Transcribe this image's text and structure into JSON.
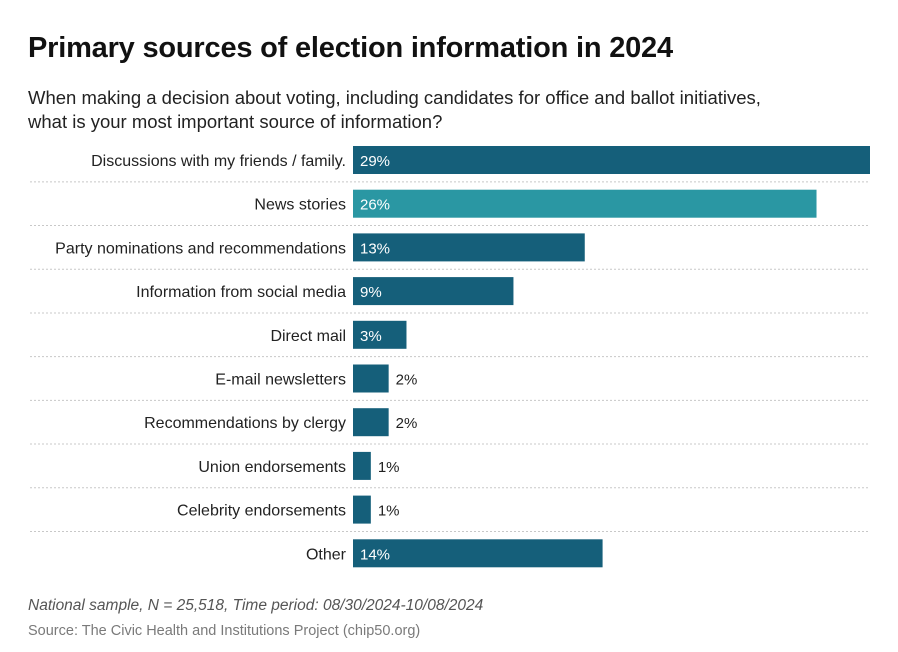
{
  "header": {
    "title": "Primary sources of election information in 2024",
    "subtitle_line1": "When making a decision about voting, including candidates for office and ballot initiatives,",
    "subtitle_line2": "what is your most important source of information?"
  },
  "footer": {
    "note": "National sample, N = 25,518, Time period: 08/30/2024-10/08/2024",
    "source": "Source: The Civic Health and Institutions Project (chip50.org)"
  },
  "chart_data": {
    "type": "bar",
    "orientation": "horizontal",
    "title": "Primary sources of election information in 2024",
    "categories": [
      "Discussions with my friends / family.",
      "News stories",
      "Party nominations and recommendations",
      "Information from social media",
      "Direct mail",
      "E-mail newsletters",
      "Recommendations by clergy",
      "Union endorsements",
      "Celebrity endorsements",
      "Other"
    ],
    "values": [
      29,
      26,
      13,
      9,
      3,
      2,
      2,
      1,
      1,
      14
    ],
    "value_labels": [
      "29%",
      "26%",
      "13%",
      "9%",
      "3%",
      "2%",
      "2%",
      "1%",
      "1%",
      "14%"
    ],
    "unit": "%",
    "highlight_index": 1,
    "colors": {
      "bar": "#155f7a",
      "highlight": "#2a97a3",
      "grid": "#c8c8c8"
    },
    "xlim": [
      0,
      29
    ],
    "grid": "dotted row separators",
    "legend": "none"
  }
}
